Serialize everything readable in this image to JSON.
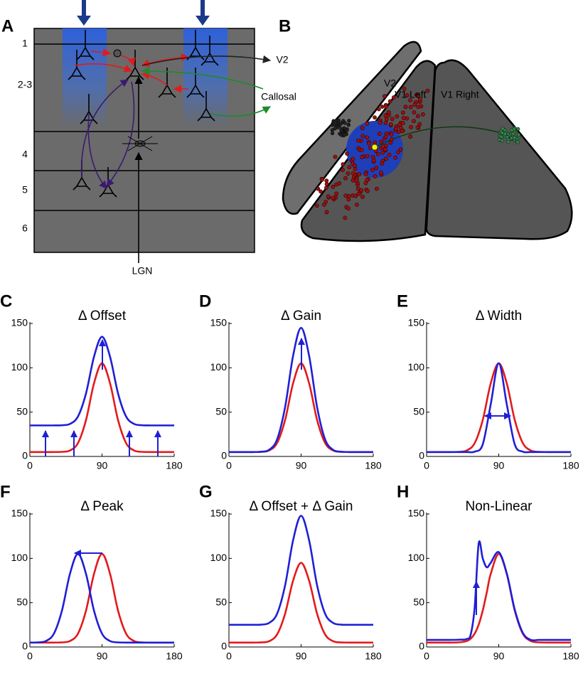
{
  "diagram": {
    "panel_a": {
      "label": "A",
      "layers": [
        "1",
        "2-3",
        "4",
        "5",
        "6"
      ],
      "input": "LGN",
      "targets": [
        "V2",
        "Callosal"
      ]
    },
    "panel_b": {
      "label": "B",
      "areas": [
        "V2",
        "V1 Left",
        "V1 Right"
      ]
    }
  },
  "chart_data": [
    {
      "type": "line",
      "label": "C",
      "title": "Δ Offset",
      "x": [
        0,
        10,
        20,
        30,
        40,
        50,
        60,
        70,
        80,
        90,
        100,
        110,
        120,
        130,
        140,
        150,
        160,
        170,
        180
      ],
      "xlim": [
        0,
        180
      ],
      "xticks": [
        0,
        90,
        180
      ],
      "ylim": [
        0,
        150
      ],
      "yticks": [
        0,
        50,
        100,
        150
      ],
      "series": [
        {
          "color": "#e31a1c",
          "values": [
            5,
            5,
            5,
            5,
            5.2,
            6.7,
            15.1,
            41,
            82.5,
            105,
            82.5,
            41,
            15.1,
            6.7,
            5.2,
            5,
            5,
            5,
            5
          ]
        },
        {
          "color": "#1f1fd6",
          "values": [
            35,
            35,
            35,
            35,
            35.2,
            36.7,
            45.1,
            71,
            112.5,
            135,
            112.5,
            71,
            45.1,
            36.7,
            35.2,
            35,
            35,
            35,
            35
          ]
        }
      ]
    },
    {
      "type": "line",
      "label": "D",
      "title": "Δ Gain",
      "x": [
        0,
        10,
        20,
        30,
        40,
        50,
        60,
        70,
        80,
        90,
        100,
        110,
        120,
        130,
        140,
        150,
        160,
        170,
        180
      ],
      "xlim": [
        0,
        180
      ],
      "xticks": [
        0,
        90,
        180
      ],
      "ylim": [
        0,
        150
      ],
      "yticks": [
        0,
        50,
        100,
        150
      ],
      "series": [
        {
          "color": "#e31a1c",
          "values": [
            5,
            5,
            5,
            5,
            5.2,
            6.7,
            15.1,
            41,
            82.5,
            105,
            82.5,
            41,
            15.1,
            6.7,
            5.2,
            5,
            5,
            5,
            5
          ]
        },
        {
          "color": "#1f1fd6",
          "values": [
            5,
            5,
            5,
            5,
            5.3,
            7.4,
            19.1,
            55.4,
            113.5,
            145,
            113.5,
            55.4,
            19.1,
            7.4,
            5.3,
            5,
            5,
            5,
            5
          ]
        }
      ]
    },
    {
      "type": "line",
      "label": "E",
      "title": "Δ Width",
      "x": [
        0,
        10,
        20,
        30,
        40,
        50,
        60,
        70,
        80,
        90,
        100,
        110,
        120,
        130,
        140,
        150,
        160,
        170,
        180
      ],
      "xlim": [
        0,
        180
      ],
      "xticks": [
        0,
        90,
        180
      ],
      "ylim": [
        0,
        150
      ],
      "yticks": [
        0,
        50,
        100,
        150
      ],
      "series": [
        {
          "color": "#e31a1c",
          "values": [
            5,
            5,
            5,
            5,
            5.2,
            6.7,
            15.1,
            41,
            82.5,
            105,
            82.5,
            41,
            15.1,
            6.7,
            5.2,
            5,
            5,
            5,
            5
          ]
        },
        {
          "color": "#1f1fd6",
          "values": [
            5,
            5,
            5,
            5,
            5,
            5,
            5.4,
            13.5,
            58.9,
            105,
            58.9,
            13.5,
            5.4,
            5,
            5,
            5,
            5,
            5,
            5
          ]
        }
      ]
    },
    {
      "type": "line",
      "label": "F",
      "title": "Δ Peak",
      "x": [
        0,
        10,
        20,
        30,
        40,
        50,
        60,
        70,
        80,
        90,
        100,
        110,
        120,
        130,
        140,
        150,
        160,
        170,
        180
      ],
      "xlim": [
        0,
        180
      ],
      "xticks": [
        0,
        90,
        180
      ],
      "ylim": [
        0,
        150
      ],
      "yticks": [
        0,
        50,
        100,
        150
      ],
      "series": [
        {
          "color": "#e31a1c",
          "values": [
            5,
            5,
            5,
            5,
            5.2,
            6.7,
            15.1,
            41,
            82.5,
            105,
            82.5,
            41,
            15.1,
            6.7,
            5.2,
            5,
            5,
            5,
            5
          ]
        },
        {
          "color": "#1f1fd6",
          "values": [
            5,
            5.2,
            6.7,
            15.1,
            41,
            82.5,
            105,
            82.5,
            41,
            15.1,
            6.7,
            5.2,
            5,
            5,
            5,
            5,
            5,
            5,
            5
          ]
        }
      ]
    },
    {
      "type": "line",
      "label": "G",
      "title": "Δ Offset + Δ Gain",
      "x": [
        0,
        10,
        20,
        30,
        40,
        50,
        60,
        70,
        80,
        90,
        100,
        110,
        120,
        130,
        140,
        150,
        160,
        170,
        180
      ],
      "xlim": [
        0,
        180
      ],
      "xticks": [
        0,
        90,
        180
      ],
      "ylim": [
        0,
        150
      ],
      "yticks": [
        0,
        50,
        100,
        150
      ],
      "series": [
        {
          "color": "#e31a1c",
          "values": [
            5,
            5,
            5,
            5,
            5.2,
            6.5,
            14.1,
            37.4,
            74.8,
            95,
            74.8,
            37.4,
            14.1,
            6.5,
            5.2,
            5,
            5,
            5,
            5
          ]
        },
        {
          "color": "#1f1fd6",
          "values": [
            25,
            25,
            25,
            25,
            25.2,
            27.1,
            37.4,
            69.3,
            120.3,
            148,
            120.3,
            69.3,
            37.4,
            27.1,
            25.2,
            25,
            25,
            25,
            25
          ]
        }
      ]
    },
    {
      "type": "line",
      "label": "H",
      "title": "Non-Linear",
      "x": [
        0,
        10,
        20,
        30,
        40,
        50,
        55,
        60,
        65,
        70,
        75,
        80,
        90,
        100,
        110,
        120,
        130,
        140,
        150,
        160,
        170,
        180
      ],
      "xlim": [
        0,
        180
      ],
      "xticks": [
        0,
        90,
        180
      ],
      "ylim": [
        0,
        150
      ],
      "yticks": [
        0,
        50,
        100,
        150
      ],
      "series": [
        {
          "color": "#e31a1c",
          "values": [
            5,
            5,
            5,
            5,
            5.2,
            6.7,
            9.4,
            15.1,
            25.3,
            41,
            61.3,
            82.5,
            105,
            82.5,
            41,
            15.1,
            6.7,
            5.2,
            5,
            5,
            5,
            5
          ]
        },
        {
          "color": "#1f1fd6",
          "values": [
            8,
            8,
            8,
            8,
            8.2,
            9,
            14,
            45,
            117,
            100,
            90,
            95,
            107,
            83,
            42,
            16,
            8,
            8,
            8,
            8,
            8,
            8
          ]
        }
      ]
    }
  ]
}
